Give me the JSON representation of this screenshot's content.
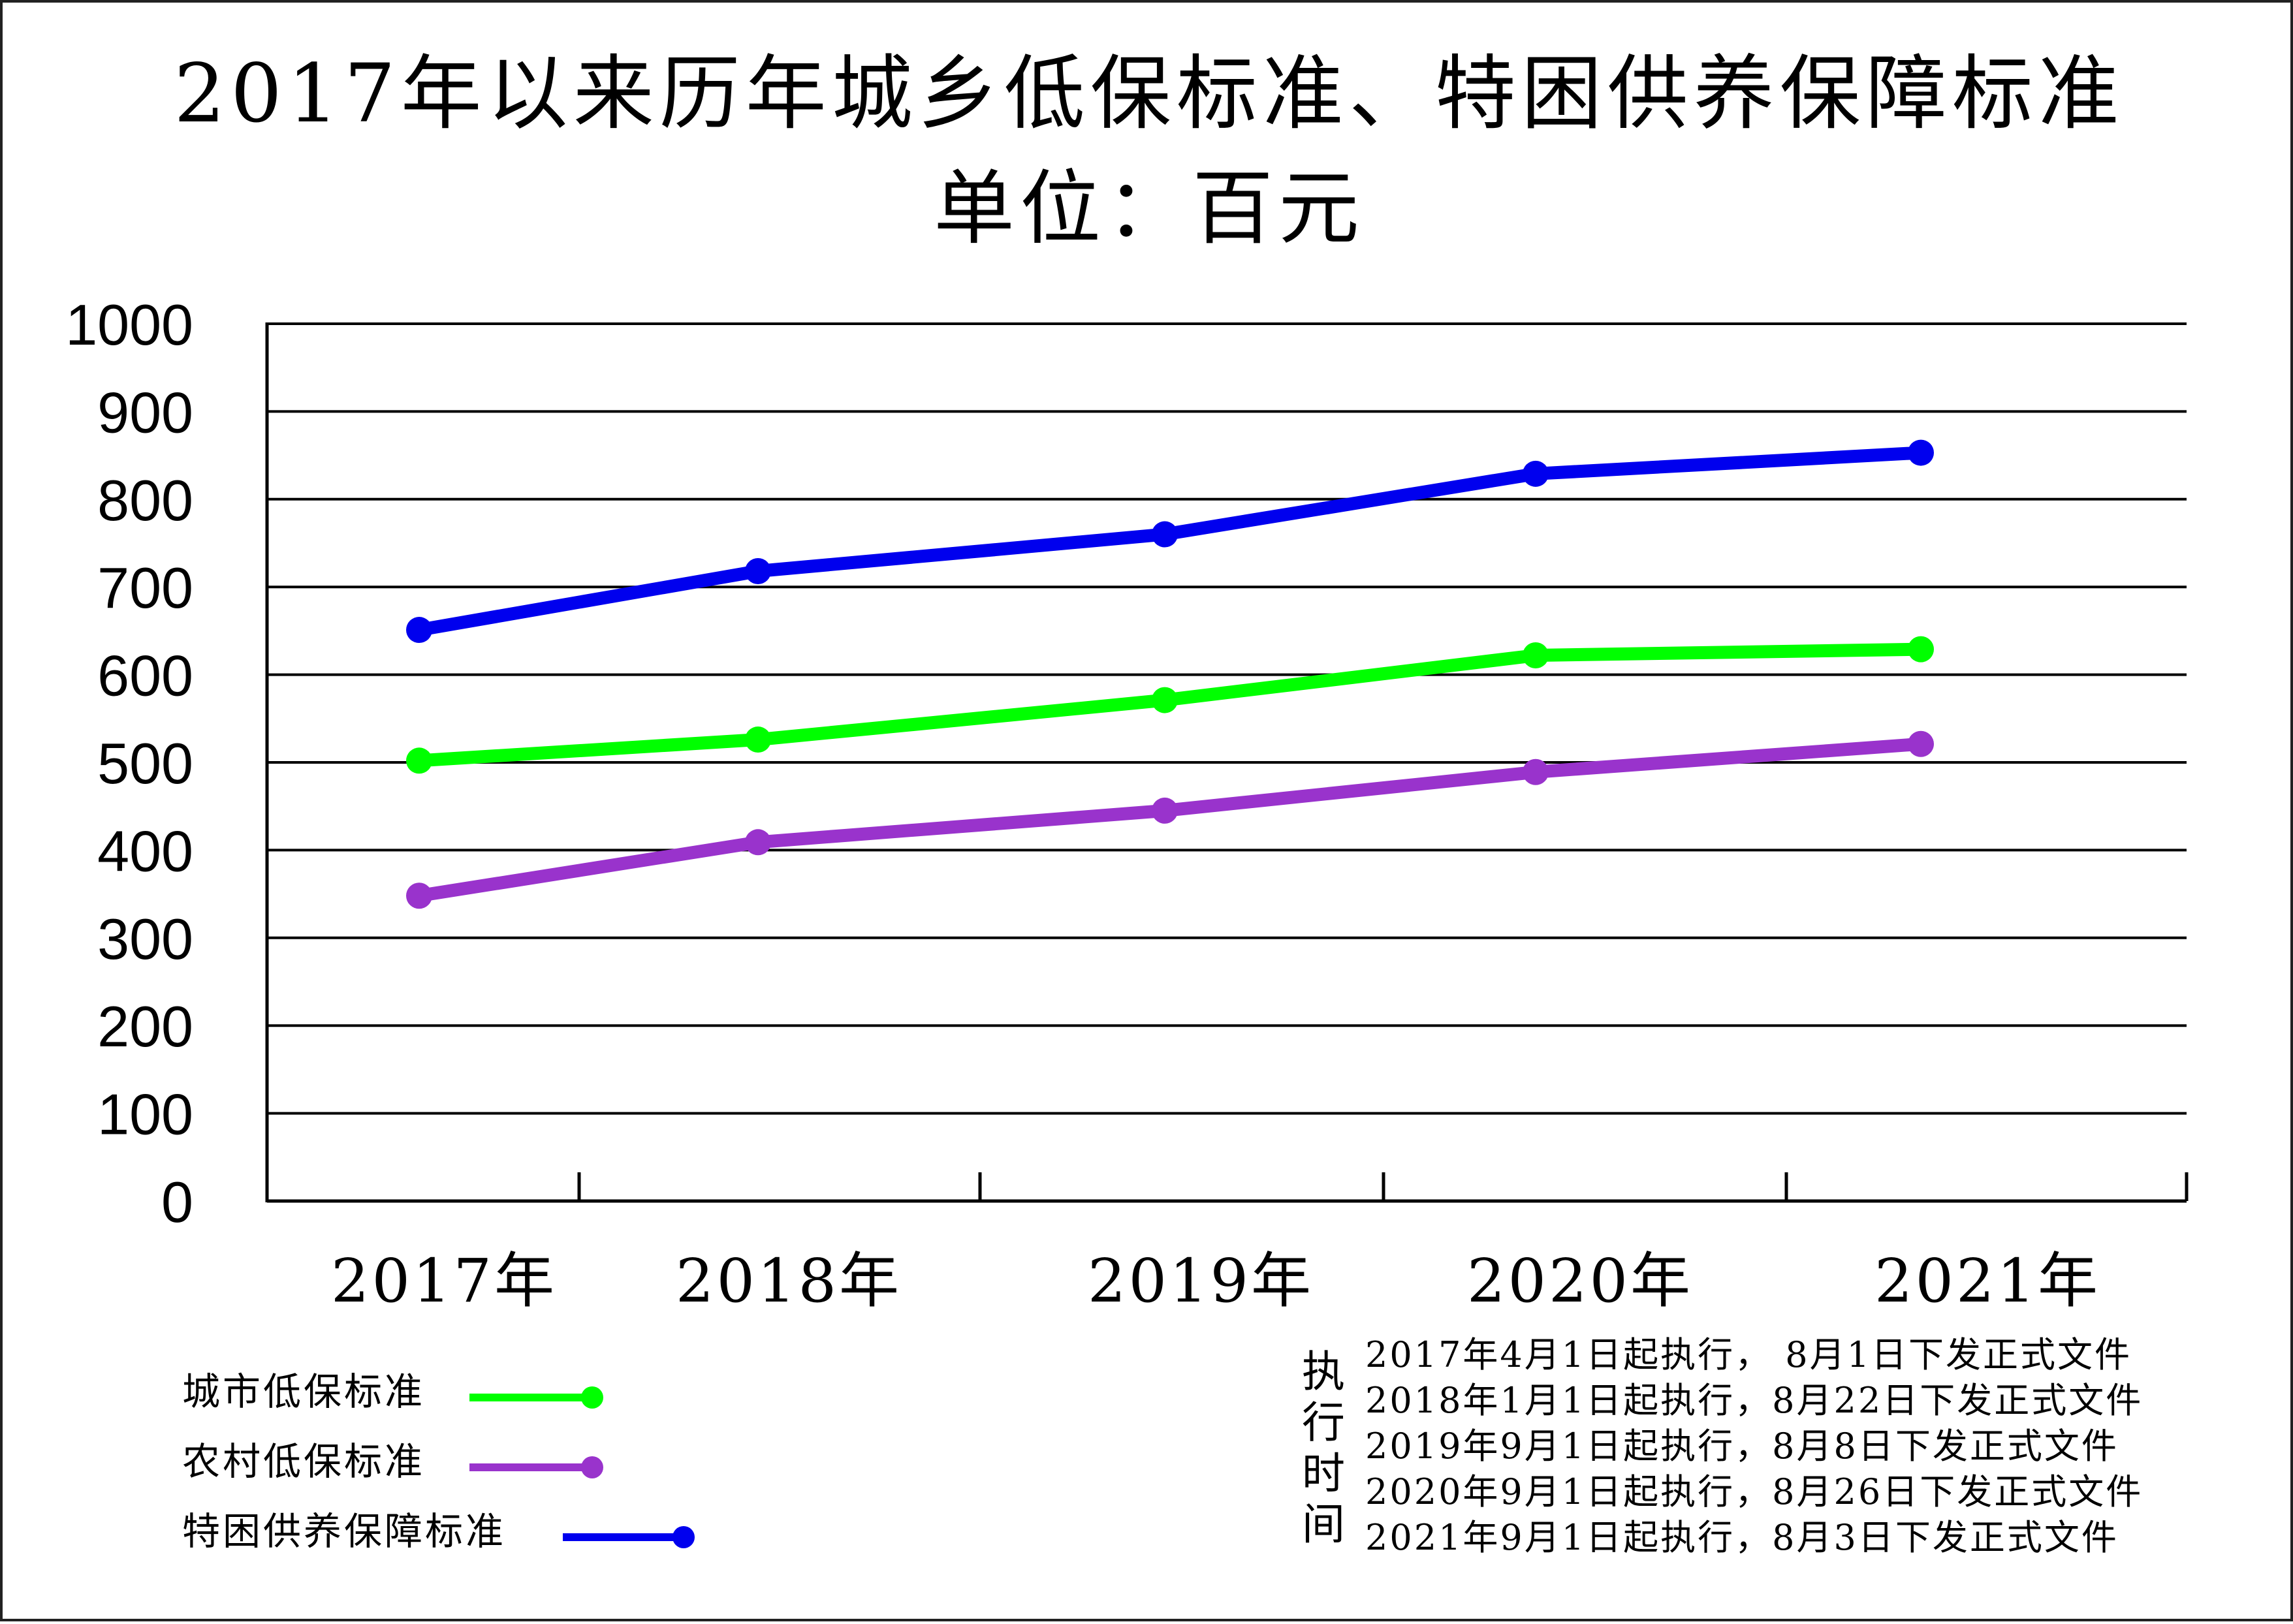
{
  "chart_data": {
    "type": "line",
    "title": "2017年以来历年城乡低保标准、特困供养保障标准",
    "subtitle": "单位：百元",
    "categories": [
      "2017年",
      "2018年",
      "2019年",
      "2020年",
      "2021年"
    ],
    "ylim": [
      0,
      1000
    ],
    "yticks": [
      "0",
      "100",
      "200",
      "300",
      "400",
      "500",
      "600",
      "700",
      "800",
      "900",
      "1000"
    ],
    "grid": true,
    "series": [
      {
        "name": "城市低保标准",
        "color": "#00ff00",
        "values": [
          502,
          526,
          571,
          622,
          629
        ]
      },
      {
        "name": "农村低保标准",
        "color": "#9933cc",
        "values": [
          348,
          409,
          445,
          489,
          521
        ]
      },
      {
        "name": "特困供养保障标准",
        "color": "#0000ee",
        "values": [
          651,
          718,
          760,
          829,
          853
        ]
      }
    ]
  },
  "notes": {
    "label": [
      "执",
      "行",
      "时",
      "间"
    ],
    "lines": [
      "2017年4月1日起执行， 8月1日下发正式文件",
      "2018年1月1日起执行，8月22日下发正式文件",
      "2019年9月1日起执行，8月8日下发正式文件",
      "2020年9月1日起执行，8月26日下发正式文件",
      "2021年9月1日起执行，8月3日下发正式文件"
    ]
  }
}
